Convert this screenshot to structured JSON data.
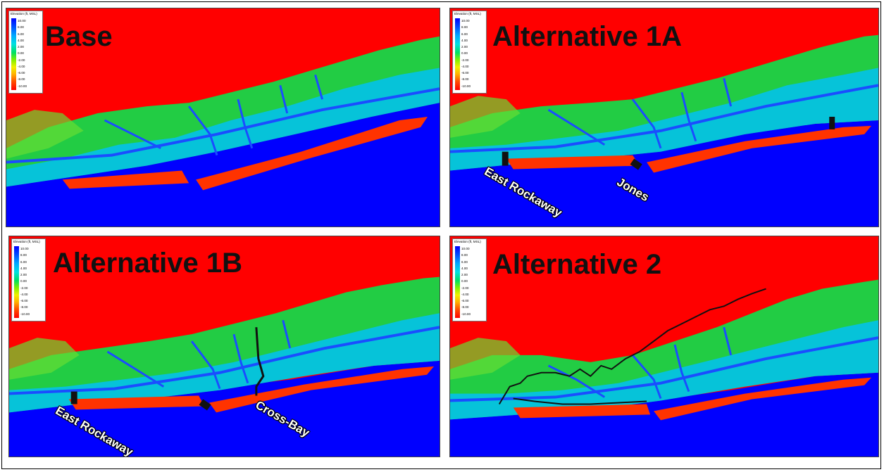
{
  "colors": {
    "ocean": "#0000ff",
    "land": "#ff0000",
    "marsh_green": "#22cc44",
    "channel_blue": "#1a4dff",
    "border": "#000000"
  },
  "legend": {
    "title": "Elevation (ft, MSL)",
    "ticks": [
      "10.00",
      "8.00",
      "6.00",
      "4.00",
      "2.00",
      "0.00",
      "-2.00",
      "-4.00",
      "-6.00",
      "-8.00",
      "-10.00"
    ]
  },
  "panels": [
    {
      "id": "base",
      "title": "Base",
      "labels": []
    },
    {
      "id": "alt1a",
      "title": "Alternative 1A",
      "labels": [
        "East Rockaway",
        "Jones"
      ]
    },
    {
      "id": "alt1b",
      "title": "Alternative 1B",
      "labels": [
        "East Rockaway",
        "Cross-Bay"
      ]
    },
    {
      "id": "alt2",
      "title": "Alternative 2",
      "labels": []
    }
  ]
}
